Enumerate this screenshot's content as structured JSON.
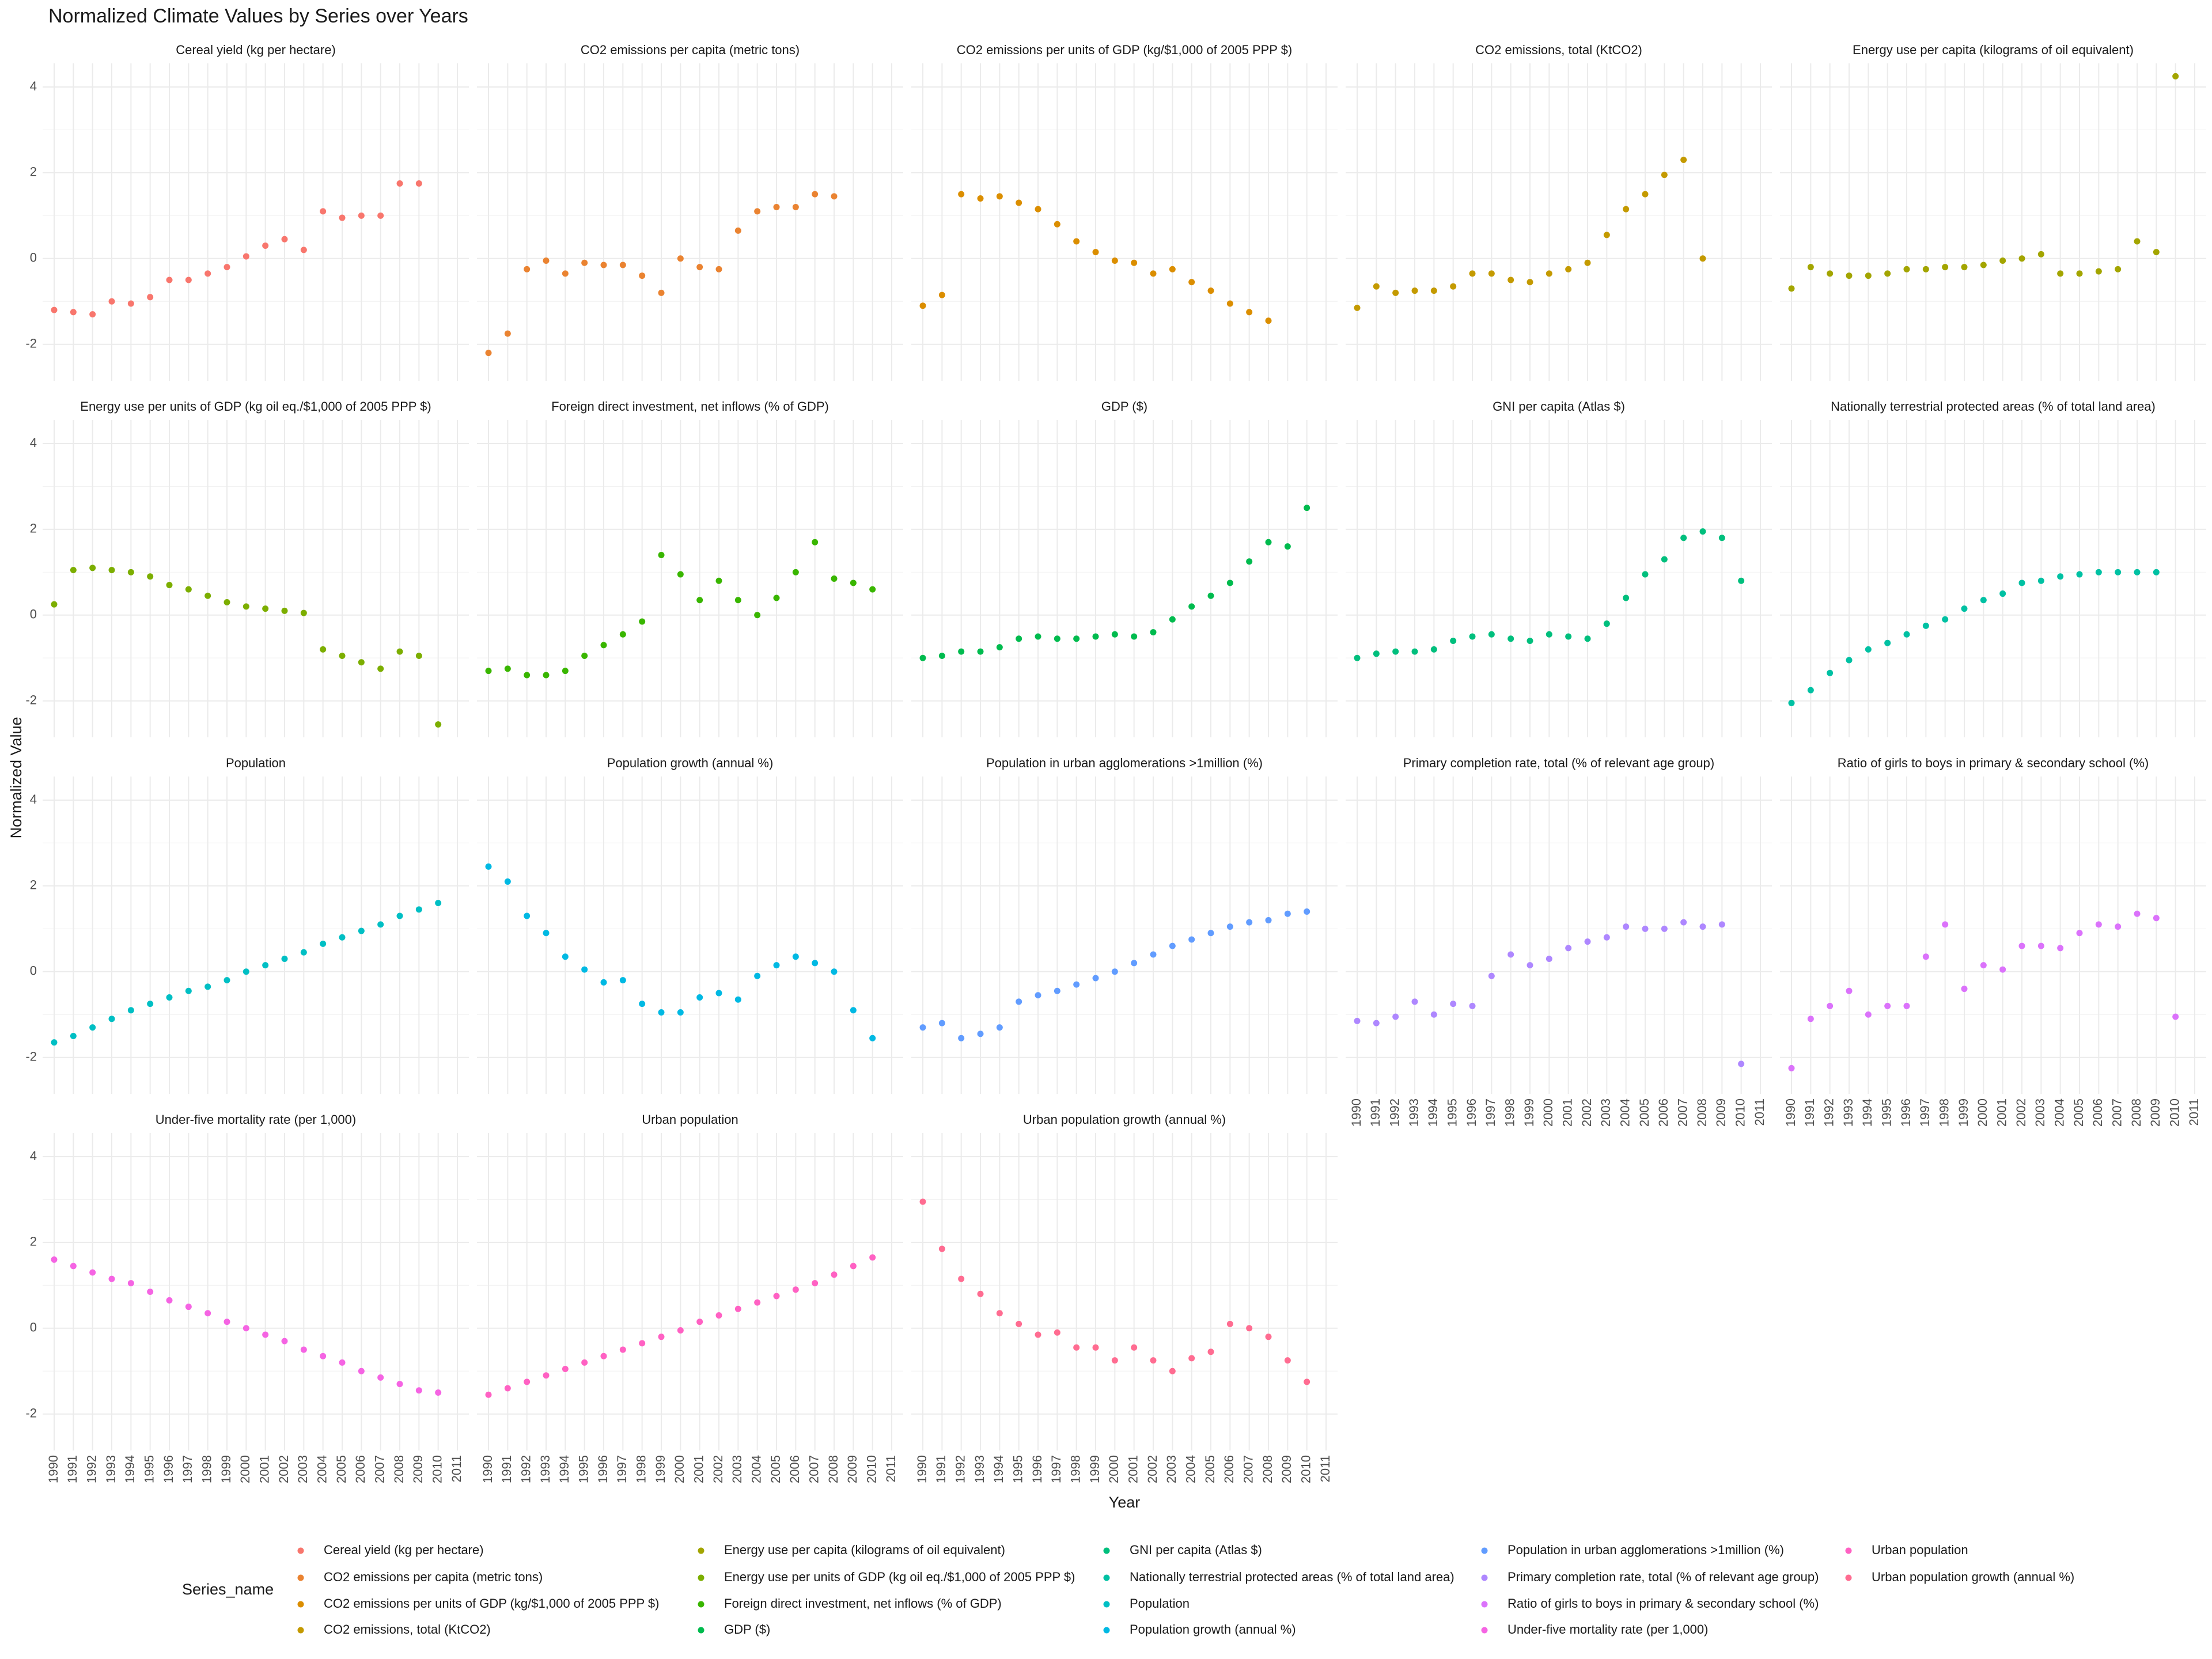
{
  "chart_data": {
    "type": "scatter",
    "facet": true,
    "title": "Normalized Climate Values by Series over Years",
    "x_label": "Year",
    "y_label": "Normalized Value",
    "legend_title": "Series_name",
    "legend": "bottom",
    "grid": true,
    "xlim": [
      1989.4,
      2011.6
    ],
    "xticks": [
      1990,
      1991,
      1992,
      1993,
      1994,
      1995,
      1996,
      1997,
      1998,
      1999,
      2000,
      2001,
      2002,
      2003,
      2004,
      2005,
      2006,
      2007,
      2008,
      2009,
      2010,
      2011
    ],
    "ylim": [
      -2.85,
      4.55
    ],
    "yticks": [
      -2,
      0,
      2,
      4
    ],
    "x": [
      1990,
      1991,
      1992,
      1993,
      1994,
      1995,
      1996,
      1997,
      1998,
      1999,
      2000,
      2001,
      2002,
      2003,
      2004,
      2005,
      2006,
      2007,
      2008,
      2009,
      2010
    ],
    "series": [
      {
        "name": "Cereal yield (kg per hectare)",
        "color": "#F8766D",
        "values": [
          -1.2,
          -1.25,
          -1.3,
          -1.0,
          -1.05,
          -0.9,
          -0.5,
          -0.5,
          -0.35,
          -0.2,
          0.05,
          0.3,
          0.45,
          0.2,
          1.1,
          0.95,
          1.0,
          1.0,
          1.75,
          1.75,
          null
        ]
      },
      {
        "name": "CO2 emissions per capita (metric tons)",
        "color": "#EA8331",
        "values": [
          -2.2,
          -1.75,
          -0.25,
          -0.05,
          -0.35,
          -0.1,
          -0.15,
          -0.15,
          -0.4,
          -0.8,
          0.0,
          -0.2,
          -0.25,
          0.65,
          1.1,
          1.2,
          1.2,
          1.5,
          1.45,
          null,
          null
        ]
      },
      {
        "name": "CO2 emissions per units of GDP (kg/$1,000 of 2005 PPP $)",
        "color": "#DB8E00",
        "values": [
          -1.1,
          -0.85,
          1.5,
          1.4,
          1.45,
          1.3,
          1.15,
          0.8,
          0.4,
          0.15,
          -0.05,
          -0.1,
          -0.35,
          -0.25,
          -0.55,
          -0.75,
          -1.05,
          -1.25,
          -1.45,
          null,
          null
        ]
      },
      {
        "name": "CO2 emissions, total (KtCO2)",
        "color": "#C49A00",
        "values": [
          -1.15,
          -0.65,
          -0.8,
          -0.75,
          -0.75,
          -0.65,
          -0.35,
          -0.35,
          -0.5,
          -0.55,
          -0.35,
          -0.25,
          -0.1,
          0.55,
          1.15,
          1.5,
          1.95,
          2.3,
          0.0,
          null,
          null
        ]
      },
      {
        "name": "Energy use per capita (kilograms of oil equivalent)",
        "color": "#A3A500",
        "values": [
          -0.7,
          -0.2,
          -0.35,
          -0.4,
          -0.4,
          -0.35,
          -0.25,
          -0.25,
          -0.2,
          -0.2,
          -0.15,
          -0.05,
          0.0,
          0.1,
          -0.35,
          -0.35,
          -0.3,
          -0.25,
          0.4,
          0.15,
          4.25
        ]
      },
      {
        "name": "Energy use per units of GDP (kg oil eq./$1,000 of 2005 PPP $)",
        "color": "#7CAE00",
        "values": [
          0.25,
          1.05,
          1.1,
          1.05,
          1.0,
          0.9,
          0.7,
          0.6,
          0.45,
          0.3,
          0.2,
          0.15,
          0.1,
          0.05,
          -0.8,
          -0.95,
          -1.1,
          -1.25,
          -0.85,
          -0.95,
          -2.55
        ]
      },
      {
        "name": "Foreign direct investment, net inflows (% of GDP)",
        "color": "#39B600",
        "values": [
          -1.3,
          -1.25,
          -1.4,
          -1.4,
          -1.3,
          -0.95,
          -0.7,
          -0.45,
          -0.15,
          1.4,
          0.95,
          0.35,
          0.8,
          0.35,
          0.0,
          0.4,
          1.0,
          1.7,
          0.85,
          0.75,
          0.6
        ]
      },
      {
        "name": "GDP ($)",
        "color": "#00BB4E",
        "values": [
          -1.0,
          -0.95,
          -0.85,
          -0.85,
          -0.75,
          -0.55,
          -0.5,
          -0.55,
          -0.55,
          -0.5,
          -0.45,
          -0.5,
          -0.4,
          -0.1,
          0.2,
          0.45,
          0.75,
          1.25,
          1.7,
          1.6,
          2.5
        ]
      },
      {
        "name": "GNI per capita (Atlas $)",
        "color": "#00BF7D",
        "values": [
          -1.0,
          -0.9,
          -0.85,
          -0.85,
          -0.8,
          -0.6,
          -0.5,
          -0.45,
          -0.55,
          -0.6,
          -0.45,
          -0.5,
          -0.55,
          -0.2,
          0.4,
          0.95,
          1.3,
          1.8,
          1.95,
          1.8,
          0.8
        ]
      },
      {
        "name": "Nationally terrestrial protected areas (% of total land area)",
        "color": "#00C1A3",
        "values": [
          -2.05,
          -1.75,
          -1.35,
          -1.05,
          -0.8,
          -0.65,
          -0.45,
          -0.25,
          -0.1,
          0.15,
          0.35,
          0.5,
          0.75,
          0.8,
          0.9,
          0.95,
          1.0,
          1.0,
          1.0,
          1.0,
          null
        ]
      },
      {
        "name": "Population",
        "color": "#00BFC4",
        "values": [
          -1.65,
          -1.5,
          -1.3,
          -1.1,
          -0.9,
          -0.75,
          -0.6,
          -0.45,
          -0.35,
          -0.2,
          0.0,
          0.15,
          0.3,
          0.45,
          0.65,
          0.8,
          0.95,
          1.1,
          1.3,
          1.45,
          1.6
        ]
      },
      {
        "name": "Population growth (annual %)",
        "color": "#00B9E3",
        "values": [
          2.45,
          2.1,
          1.3,
          0.9,
          0.35,
          0.05,
          -0.25,
          -0.2,
          -0.75,
          -0.95,
          -0.95,
          -0.6,
          -0.5,
          -0.65,
          -0.1,
          0.15,
          0.35,
          0.2,
          0.0,
          -0.9,
          -1.55
        ]
      },
      {
        "name": "Population in urban agglomerations >1million (%)",
        "color": "#619CFF",
        "values": [
          -1.3,
          -1.2,
          -1.55,
          -1.45,
          -1.3,
          -0.7,
          -0.55,
          -0.45,
          -0.3,
          -0.15,
          0.0,
          0.2,
          0.4,
          0.6,
          0.75,
          0.9,
          1.05,
          1.15,
          1.2,
          1.35,
          1.4
        ]
      },
      {
        "name": "Primary completion rate, total (% of relevant age group)",
        "color": "#AE87FF",
        "values": [
          -1.15,
          -1.2,
          -1.05,
          -0.7,
          -1.0,
          -0.75,
          -0.8,
          -0.1,
          0.4,
          0.15,
          0.3,
          0.55,
          0.7,
          0.8,
          1.05,
          1.0,
          1.0,
          1.15,
          1.05,
          1.1,
          -2.15
        ]
      },
      {
        "name": "Ratio of girls to boys in primary & secondary school (%)",
        "color": "#DB72FB",
        "values": [
          -2.25,
          -1.1,
          -0.8,
          -0.45,
          -1.0,
          -0.8,
          -0.8,
          0.35,
          1.1,
          -0.4,
          0.15,
          0.05,
          0.6,
          0.6,
          0.55,
          0.9,
          1.1,
          1.05,
          1.35,
          1.25,
          -1.05
        ]
      },
      {
        "name": "Under-five mortality rate (per 1,000)",
        "color": "#F564E3",
        "values": [
          1.6,
          1.45,
          1.3,
          1.15,
          1.05,
          0.85,
          0.65,
          0.5,
          0.35,
          0.15,
          0.0,
          -0.15,
          -0.3,
          -0.5,
          -0.65,
          -0.8,
          -1.0,
          -1.15,
          -1.3,
          -1.45,
          -1.5
        ]
      },
      {
        "name": "Urban population",
        "color": "#FF61C3",
        "values": [
          -1.55,
          -1.4,
          -1.25,
          -1.1,
          -0.95,
          -0.8,
          -0.65,
          -0.5,
          -0.35,
          -0.2,
          -0.05,
          0.15,
          0.3,
          0.45,
          0.6,
          0.75,
          0.9,
          1.05,
          1.25,
          1.45,
          1.65
        ]
      },
      {
        "name": "Urban population growth (annual %)",
        "color": "#FF6C91",
        "values": [
          2.95,
          1.85,
          1.15,
          0.8,
          0.35,
          0.1,
          -0.15,
          -0.1,
          -0.45,
          -0.45,
          -0.75,
          -0.45,
          -0.75,
          -1.0,
          -0.7,
          -0.55,
          0.1,
          0.0,
          -0.2,
          -0.75,
          -1.25
        ]
      }
    ]
  }
}
